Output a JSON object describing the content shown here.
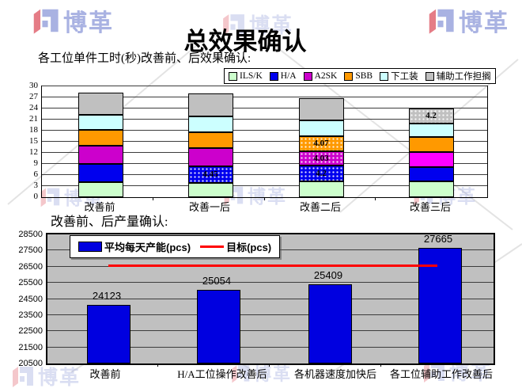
{
  "page": {
    "title": "总效果确认",
    "logo_text": "博革",
    "colors": {
      "logo_blue": "#a9b2e2",
      "logo_red": "#e57c86",
      "target_red": "#ff0000",
      "bar_blue": "#0000e0",
      "plot_gray": "#c0c0c0"
    }
  },
  "headings": {
    "top_chart": "各工位单件工时(秒)改善前、后效果确认:",
    "bottom_chart": "改善前、后产量确认:"
  },
  "chart_data": [
    {
      "id": "station-worktime",
      "type": "bar",
      "stacked": true,
      "title": "各工位单件工时(秒)改善前、后效果确认:",
      "categories": [
        "改善前",
        "改善一后",
        "改善二后",
        "改善三后"
      ],
      "series": [
        {
          "name": "ILS/K",
          "color": "#ccffcc",
          "values": [
            4.1,
            3.9,
            4.3,
            4.3
          ]
        },
        {
          "name": "H/A",
          "color": "#0000ee",
          "values": [
            5.0,
            4.45,
            4.2,
            3.8
          ],
          "cell_dotted": [
            false,
            true,
            true,
            false
          ],
          "cell_labels": [
            "",
            "4.45",
            "4.2",
            ""
          ]
        },
        {
          "name": "A2SK",
          "color": "#cc00cc",
          "values": [
            4.9,
            4.9,
            4.03,
            4.1
          ],
          "cell_dotted": [
            false,
            false,
            true,
            false
          ],
          "cell_labels": [
            "",
            "",
            "4.03",
            ""
          ],
          "cell_colors": [
            "",
            "",
            "",
            "#ff00ff"
          ]
        },
        {
          "name": "SBB",
          "color": "#ff9900",
          "values": [
            4.2,
            4.4,
            4.07,
            4.0
          ],
          "cell_dotted": [
            false,
            false,
            true,
            false
          ],
          "cell_labels": [
            "",
            "",
            "4.07",
            ""
          ]
        },
        {
          "name": "下工装",
          "color": "#ccffff",
          "values": [
            4.1,
            4.3,
            4.2,
            3.7
          ]
        },
        {
          "name": "辅助工作担搁",
          "color": "#c0c0c0",
          "values": [
            6.0,
            6.2,
            6.0,
            4.2
          ],
          "cell_dotted": [
            false,
            false,
            false,
            true
          ],
          "cell_labels": [
            "",
            "",
            "",
            "4.2"
          ]
        }
      ],
      "ylim": [
        0,
        30
      ],
      "ytick_step": 3,
      "ytick_labels": [
        "0",
        "3",
        "6",
        "9",
        "12",
        "15",
        "18",
        "21",
        "24",
        "27",
        "30"
      ],
      "grid": true,
      "legend_position": "top-right"
    },
    {
      "id": "daily-capacity",
      "type": "bar",
      "stacked": false,
      "title": "改善前、后产量确认:",
      "categories": [
        "改善前",
        "H/A工位操作改善后",
        "各机器速度加快后",
        "各工位辅助工作改善后"
      ],
      "series": [
        {
          "name": "平均每天产能(pcs)",
          "color": "#0000e0",
          "values": [
            24123,
            25054,
            25409,
            27665
          ],
          "value_labels": [
            "24123",
            "25054",
            "25409",
            "27665"
          ]
        }
      ],
      "target_line": {
        "label": "目标(pcs)",
        "value": 26500,
        "color": "#ff0000"
      },
      "ylim": [
        20500,
        28500
      ],
      "ytick_step": 1000,
      "ytick_labels": [
        "20500",
        "21500",
        "22500",
        "23500",
        "24500",
        "25500",
        "26500",
        "27500",
        "28500"
      ],
      "grid": true,
      "plot_bg": "#c0c0c0",
      "legend_position": "top-left-inside"
    }
  ]
}
